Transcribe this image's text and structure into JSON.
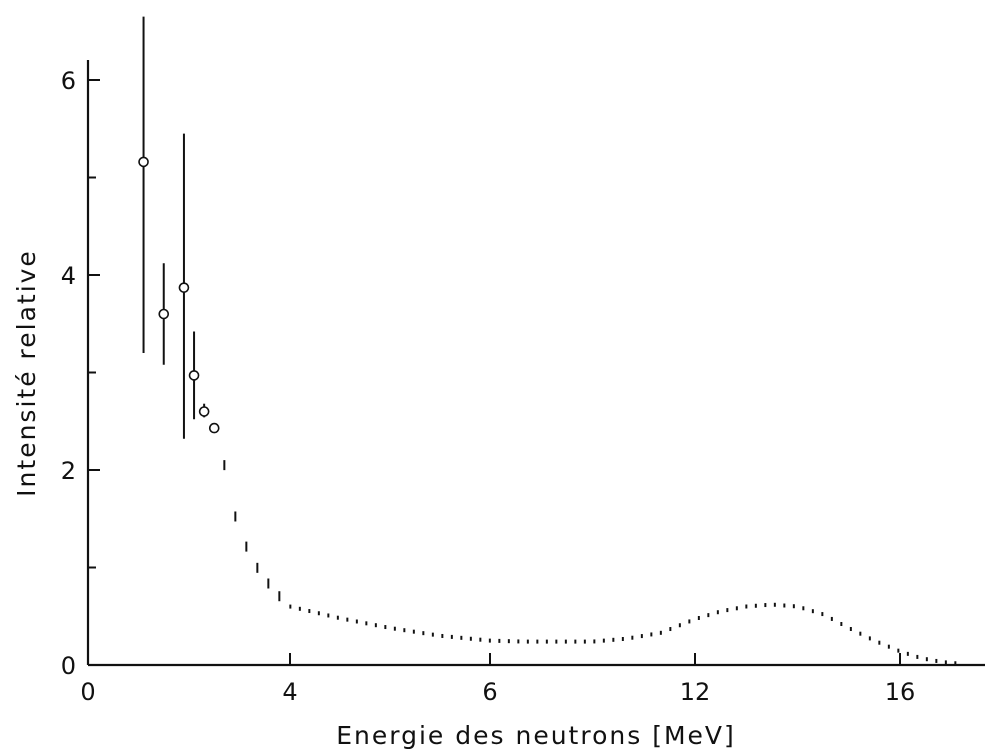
{
  "chart_data": {
    "type": "scatter",
    "title": "",
    "xlabel": "Energie des neutrons [MeV]",
    "ylabel": "Intensité relative",
    "x_tick_labels": [
      "0",
      "4",
      "6",
      "12",
      "16"
    ],
    "y_tick_labels": [
      "0",
      "2",
      "4",
      "6"
    ],
    "ylim": [
      0,
      6.6
    ],
    "grid": false,
    "legend": "none",
    "series": [
      {
        "name": "",
        "style": "open-circle-with-error-bars",
        "points": [
          {
            "x": 1.1,
            "y": 5.16,
            "y_low": 3.2,
            "y_high": 6.65
          },
          {
            "x": 1.5,
            "y": 3.6,
            "y_low": 3.08,
            "y_high": 4.12
          },
          {
            "x": 1.9,
            "y": 3.87,
            "y_low": 2.32,
            "y_high": 5.45
          },
          {
            "x": 2.1,
            "y": 2.97,
            "y_low": 2.52,
            "y_high": 3.42
          },
          {
            "x": 2.3,
            "y": 2.6,
            "y_low": 2.54,
            "y_high": 2.68
          },
          {
            "x": 2.5,
            "y": 2.43,
            "y_low": 2.43,
            "y_high": 2.43
          }
        ]
      },
      {
        "name": "",
        "style": "dashed-curve",
        "points": [
          {
            "x": 2.7,
            "y": 2.05
          },
          {
            "x": 2.9,
            "y": 1.55
          },
          {
            "x": 3.1,
            "y": 1.25
          },
          {
            "x": 3.4,
            "y": 0.95
          },
          {
            "x": 3.7,
            "y": 0.75
          },
          {
            "x": 4.0,
            "y": 0.6
          },
          {
            "x": 4.5,
            "y": 0.48
          },
          {
            "x": 5.0,
            "y": 0.38
          },
          {
            "x": 5.5,
            "y": 0.3
          },
          {
            "x": 5.8,
            "y": 0.27
          },
          {
            "x": 6.0,
            "y": 0.25
          },
          {
            "x": 7.0,
            "y": 0.24
          },
          {
            "x": 8.0,
            "y": 0.24
          },
          {
            "x": 9.0,
            "y": 0.24
          },
          {
            "x": 10.0,
            "y": 0.27
          },
          {
            "x": 11.0,
            "y": 0.33
          },
          {
            "x": 12.0,
            "y": 0.47
          },
          {
            "x": 12.5,
            "y": 0.55
          },
          {
            "x": 13.0,
            "y": 0.6
          },
          {
            "x": 13.5,
            "y": 0.62
          },
          {
            "x": 14.0,
            "y": 0.6
          },
          {
            "x": 14.5,
            "y": 0.52
          },
          {
            "x": 15.0,
            "y": 0.38
          },
          {
            "x": 15.5,
            "y": 0.25
          },
          {
            "x": 16.0,
            "y": 0.14
          },
          {
            "x": 16.5,
            "y": 0.07
          },
          {
            "x": 17.0,
            "y": 0.03
          },
          {
            "x": 17.5,
            "y": 0.01
          }
        ]
      }
    ]
  }
}
